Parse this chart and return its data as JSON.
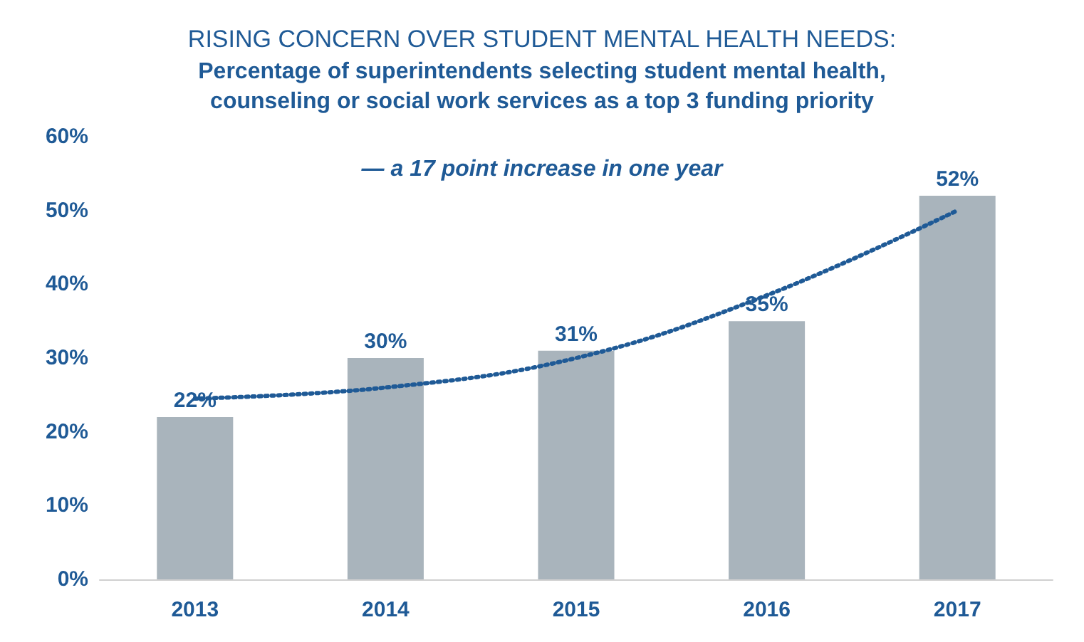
{
  "chart_data": {
    "type": "bar",
    "title": "RISING CONCERN OVER STUDENT MENTAL HEALTH NEEDS:",
    "subtitle": "Percentage of superintendents selecting student mental health,\ncounseling or social work services as a top 3 funding priority",
    "annotations": [
      "— a 17 point increase in one year"
    ],
    "categories": [
      "2013",
      "2014",
      "2015",
      "2016",
      "2017"
    ],
    "series": [
      {
        "color": "#a9b4bc",
        "values": [
          22,
          30,
          31,
          35,
          52
        ],
        "value_labels": [
          "22%",
          "30%",
          "31%",
          "35%",
          "52%"
        ]
      },
      {
        "type": "line",
        "color": "#1f5a96",
        "line_style": "dotted",
        "marker": "none",
        "values": [
          24.5,
          26,
          30,
          38.5,
          50
        ]
      }
    ],
    "ylim": [
      0,
      60
    ],
    "yticks": [
      {
        "value": 0,
        "label": "0%"
      },
      {
        "value": 10,
        "label": "10%"
      },
      {
        "value": 20,
        "label": "20%"
      },
      {
        "value": 30,
        "label": "30%"
      },
      {
        "value": 40,
        "label": "40%"
      },
      {
        "value": 50,
        "label": "50%"
      },
      {
        "value": 60,
        "label": "60%"
      }
    ],
    "grid": false
  }
}
